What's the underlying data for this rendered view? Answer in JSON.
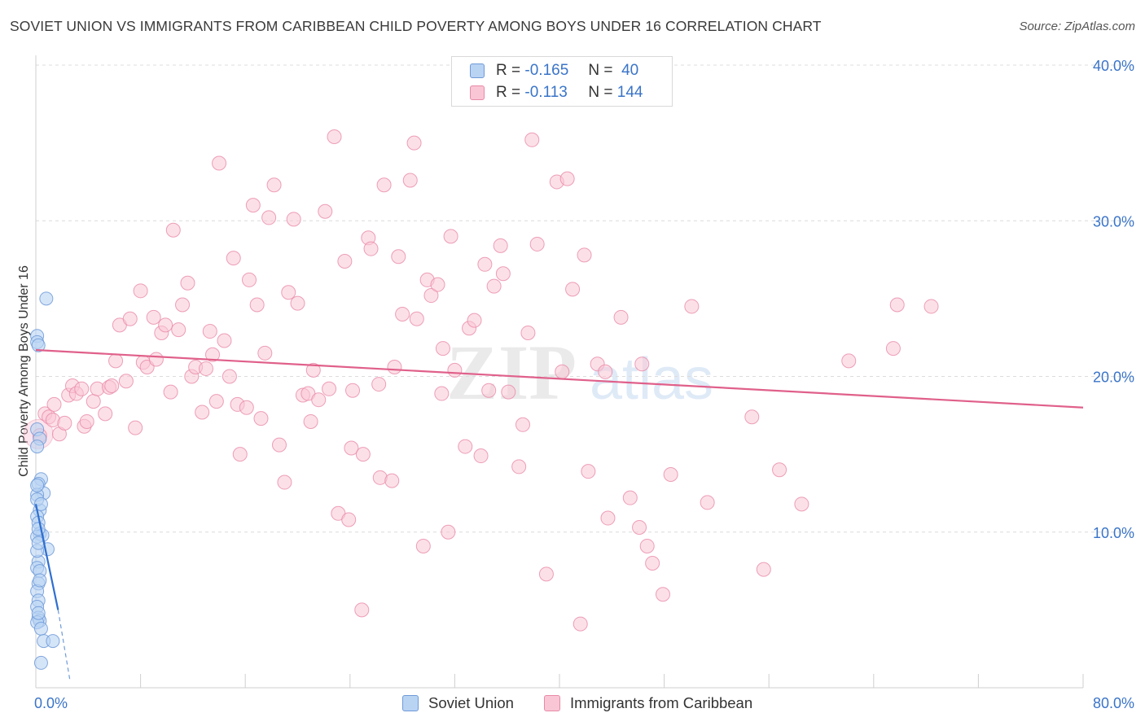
{
  "title": "SOVIET UNION VS IMMIGRANTS FROM CARIBBEAN CHILD POVERTY AMONG BOYS UNDER 16 CORRELATION CHART",
  "source": "Source: ZipAtlas.com",
  "watermark": {
    "zip": "ZIP",
    "atlas": "atlas"
  },
  "legend": {
    "r_label": "R =",
    "n_label": "N =",
    "rows": [
      {
        "r": "-0.165",
        "n": "40",
        "fill": "#b9d3f3",
        "stroke": "#6f9ad8"
      },
      {
        "r": "-0.113",
        "n": "144",
        "fill": "#f9c6d5",
        "stroke": "#e88aa8"
      }
    ]
  },
  "chart_data": {
    "type": "scatter",
    "xlabel": "",
    "ylabel": "Child Poverty Among Boys Under 16",
    "xlim": [
      0,
      80
    ],
    "ylim": [
      0,
      40
    ],
    "x_tick_labels": [
      {
        "value": 0,
        "label": "0.0%"
      },
      {
        "value": 80,
        "label": "80.0%"
      }
    ],
    "y_tick_labels": [
      {
        "value": 10,
        "label": "10.0%"
      },
      {
        "value": 20,
        "label": "20.0%"
      },
      {
        "value": 30,
        "label": "30.0%"
      },
      {
        "value": 40,
        "label": "40.0%"
      }
    ],
    "grid": true,
    "legend_position": "top-center",
    "colors": {
      "soviet": "#6f9ad8",
      "soviet_fill": "#b9d3f3",
      "caribbean": "#e88aa8",
      "caribbean_fill": "#f9c6d5",
      "soviet_line": "#2f6fd0",
      "caribbean_line": "#e0608a",
      "axis_text": "#3a74c8"
    },
    "series": [
      {
        "name": "Soviet Union",
        "trend": {
          "x0": 0.0,
          "y0": 11.8,
          "x1": 1.7,
          "y1": 5.0,
          "dash_x1": 2.6,
          "dash_y1": 0.5
        },
        "points": [
          [
            0.1,
            22.6
          ],
          [
            0.1,
            22.2
          ],
          [
            0.2,
            22.0
          ],
          [
            0.8,
            25.0
          ],
          [
            0.1,
            16.6
          ],
          [
            0.3,
            16.0
          ],
          [
            0.1,
            15.5
          ],
          [
            0.4,
            13.4
          ],
          [
            0.2,
            13.1
          ],
          [
            0.6,
            12.5
          ],
          [
            0.1,
            12.4
          ],
          [
            0.3,
            11.4
          ],
          [
            0.1,
            11.0
          ],
          [
            0.2,
            10.6
          ],
          [
            0.3,
            9.9
          ],
          [
            0.5,
            9.8
          ],
          [
            0.1,
            9.7
          ],
          [
            0.9,
            8.9
          ],
          [
            0.2,
            8.1
          ],
          [
            0.1,
            7.7
          ],
          [
            0.3,
            7.5
          ],
          [
            0.2,
            6.7
          ],
          [
            0.1,
            6.2
          ],
          [
            0.2,
            5.6
          ],
          [
            0.1,
            5.2
          ],
          [
            0.2,
            4.5
          ],
          [
            0.3,
            4.3
          ],
          [
            0.1,
            4.2
          ],
          [
            0.4,
            3.8
          ],
          [
            0.6,
            3.0
          ],
          [
            1.3,
            3.0
          ],
          [
            0.4,
            1.6
          ],
          [
            0.1,
            12.1
          ],
          [
            0.2,
            10.2
          ],
          [
            0.1,
            8.8
          ],
          [
            0.3,
            6.9
          ],
          [
            0.2,
            4.8
          ],
          [
            0.1,
            13.0
          ],
          [
            0.4,
            11.8
          ],
          [
            0.2,
            9.3
          ]
        ]
      },
      {
        "name": "Immigrants from Caribbean",
        "trend": {
          "x0": 0.0,
          "y0": 21.7,
          "x1": 80.0,
          "y1": 18.0
        },
        "points": [
          [
            0.3,
            16.2
          ],
          [
            0.7,
            17.6
          ],
          [
            1.0,
            17.4
          ],
          [
            1.3,
            17.2
          ],
          [
            1.4,
            18.2
          ],
          [
            1.8,
            16.3
          ],
          [
            2.2,
            17.0
          ],
          [
            2.5,
            18.8
          ],
          [
            2.8,
            19.4
          ],
          [
            3.1,
            18.9
          ],
          [
            3.5,
            19.2
          ],
          [
            3.7,
            16.8
          ],
          [
            3.9,
            17.1
          ],
          [
            4.4,
            18.4
          ],
          [
            4.7,
            19.2
          ],
          [
            5.3,
            17.6
          ],
          [
            5.6,
            19.3
          ],
          [
            5.8,
            19.4
          ],
          [
            6.1,
            21.0
          ],
          [
            6.4,
            23.3
          ],
          [
            6.9,
            19.7
          ],
          [
            7.2,
            23.7
          ],
          [
            7.6,
            16.7
          ],
          [
            8.0,
            25.5
          ],
          [
            8.2,
            20.9
          ],
          [
            8.5,
            20.6
          ],
          [
            9.0,
            23.8
          ],
          [
            9.2,
            21.1
          ],
          [
            9.6,
            22.8
          ],
          [
            9.9,
            23.3
          ],
          [
            10.3,
            19.0
          ],
          [
            10.5,
            29.4
          ],
          [
            10.9,
            23.0
          ],
          [
            11.2,
            24.6
          ],
          [
            11.6,
            26.0
          ],
          [
            11.9,
            20.0
          ],
          [
            12.2,
            20.6
          ],
          [
            12.7,
            17.7
          ],
          [
            13.0,
            20.5
          ],
          [
            13.3,
            22.9
          ],
          [
            13.5,
            21.4
          ],
          [
            13.8,
            18.4
          ],
          [
            14.0,
            33.7
          ],
          [
            14.4,
            22.3
          ],
          [
            14.8,
            20.0
          ],
          [
            15.1,
            27.6
          ],
          [
            15.4,
            18.2
          ],
          [
            15.6,
            15.0
          ],
          [
            16.1,
            18.0
          ],
          [
            16.3,
            26.2
          ],
          [
            16.6,
            31.0
          ],
          [
            16.9,
            24.6
          ],
          [
            17.2,
            17.3
          ],
          [
            17.5,
            21.5
          ],
          [
            17.8,
            30.2
          ],
          [
            18.2,
            32.3
          ],
          [
            18.6,
            15.6
          ],
          [
            19.0,
            13.2
          ],
          [
            19.3,
            25.4
          ],
          [
            19.7,
            30.1
          ],
          [
            20.0,
            24.7
          ],
          [
            20.4,
            18.8
          ],
          [
            20.8,
            18.9
          ],
          [
            21.0,
            17.1
          ],
          [
            21.2,
            20.4
          ],
          [
            21.6,
            18.5
          ],
          [
            22.1,
            30.6
          ],
          [
            22.4,
            19.2
          ],
          [
            22.8,
            35.4
          ],
          [
            23.1,
            11.2
          ],
          [
            23.6,
            27.4
          ],
          [
            23.9,
            10.8
          ],
          [
            24.2,
            19.1
          ],
          [
            24.1,
            15.4
          ],
          [
            24.9,
            5.0
          ],
          [
            25.0,
            15.0
          ],
          [
            25.4,
            28.9
          ],
          [
            25.6,
            28.2
          ],
          [
            26.2,
            19.5
          ],
          [
            26.3,
            13.5
          ],
          [
            26.6,
            32.3
          ],
          [
            27.2,
            13.3
          ],
          [
            27.4,
            20.6
          ],
          [
            27.7,
            27.7
          ],
          [
            28.0,
            24.0
          ],
          [
            28.6,
            32.6
          ],
          [
            28.9,
            35.0
          ],
          [
            29.1,
            23.7
          ],
          [
            29.6,
            9.1
          ],
          [
            29.9,
            26.2
          ],
          [
            30.2,
            25.2
          ],
          [
            30.7,
            25.9
          ],
          [
            31.1,
            21.8
          ],
          [
            31.5,
            10.0
          ],
          [
            31.7,
            29.0
          ],
          [
            32.0,
            20.4
          ],
          [
            32.8,
            15.5
          ],
          [
            33.1,
            23.1
          ],
          [
            33.5,
            23.6
          ],
          [
            34.0,
            14.9
          ],
          [
            34.3,
            27.2
          ],
          [
            34.6,
            19.1
          ],
          [
            35.0,
            25.8
          ],
          [
            35.5,
            28.4
          ],
          [
            35.7,
            26.6
          ],
          [
            36.1,
            19.0
          ],
          [
            36.9,
            14.2
          ],
          [
            37.2,
            16.9
          ],
          [
            37.6,
            22.8
          ],
          [
            37.9,
            35.2
          ],
          [
            38.3,
            28.5
          ],
          [
            39.0,
            7.3
          ],
          [
            39.8,
            32.5
          ],
          [
            40.2,
            20.3
          ],
          [
            40.6,
            32.7
          ],
          [
            41.0,
            25.6
          ],
          [
            41.6,
            4.1
          ],
          [
            41.9,
            27.8
          ],
          [
            42.2,
            13.9
          ],
          [
            42.9,
            20.8
          ],
          [
            43.5,
            20.3
          ],
          [
            43.7,
            10.9
          ],
          [
            44.7,
            23.8
          ],
          [
            45.4,
            12.2
          ],
          [
            46.1,
            10.3
          ],
          [
            46.3,
            20.8
          ],
          [
            46.7,
            9.1
          ],
          [
            47.1,
            8.0
          ],
          [
            47.9,
            6.0
          ],
          [
            48.5,
            13.7
          ],
          [
            50.1,
            24.5
          ],
          [
            51.3,
            11.9
          ],
          [
            54.7,
            17.4
          ],
          [
            55.6,
            7.6
          ],
          [
            56.8,
            14.0
          ],
          [
            58.5,
            11.8
          ],
          [
            62.1,
            21.0
          ],
          [
            65.5,
            21.8
          ],
          [
            65.8,
            24.6
          ],
          [
            68.4,
            24.5
          ],
          [
            31.0,
            18.9
          ]
        ]
      }
    ]
  },
  "bottom_legend": [
    {
      "label": "Soviet Union"
    },
    {
      "label": "Immigrants from Caribbean"
    }
  ]
}
